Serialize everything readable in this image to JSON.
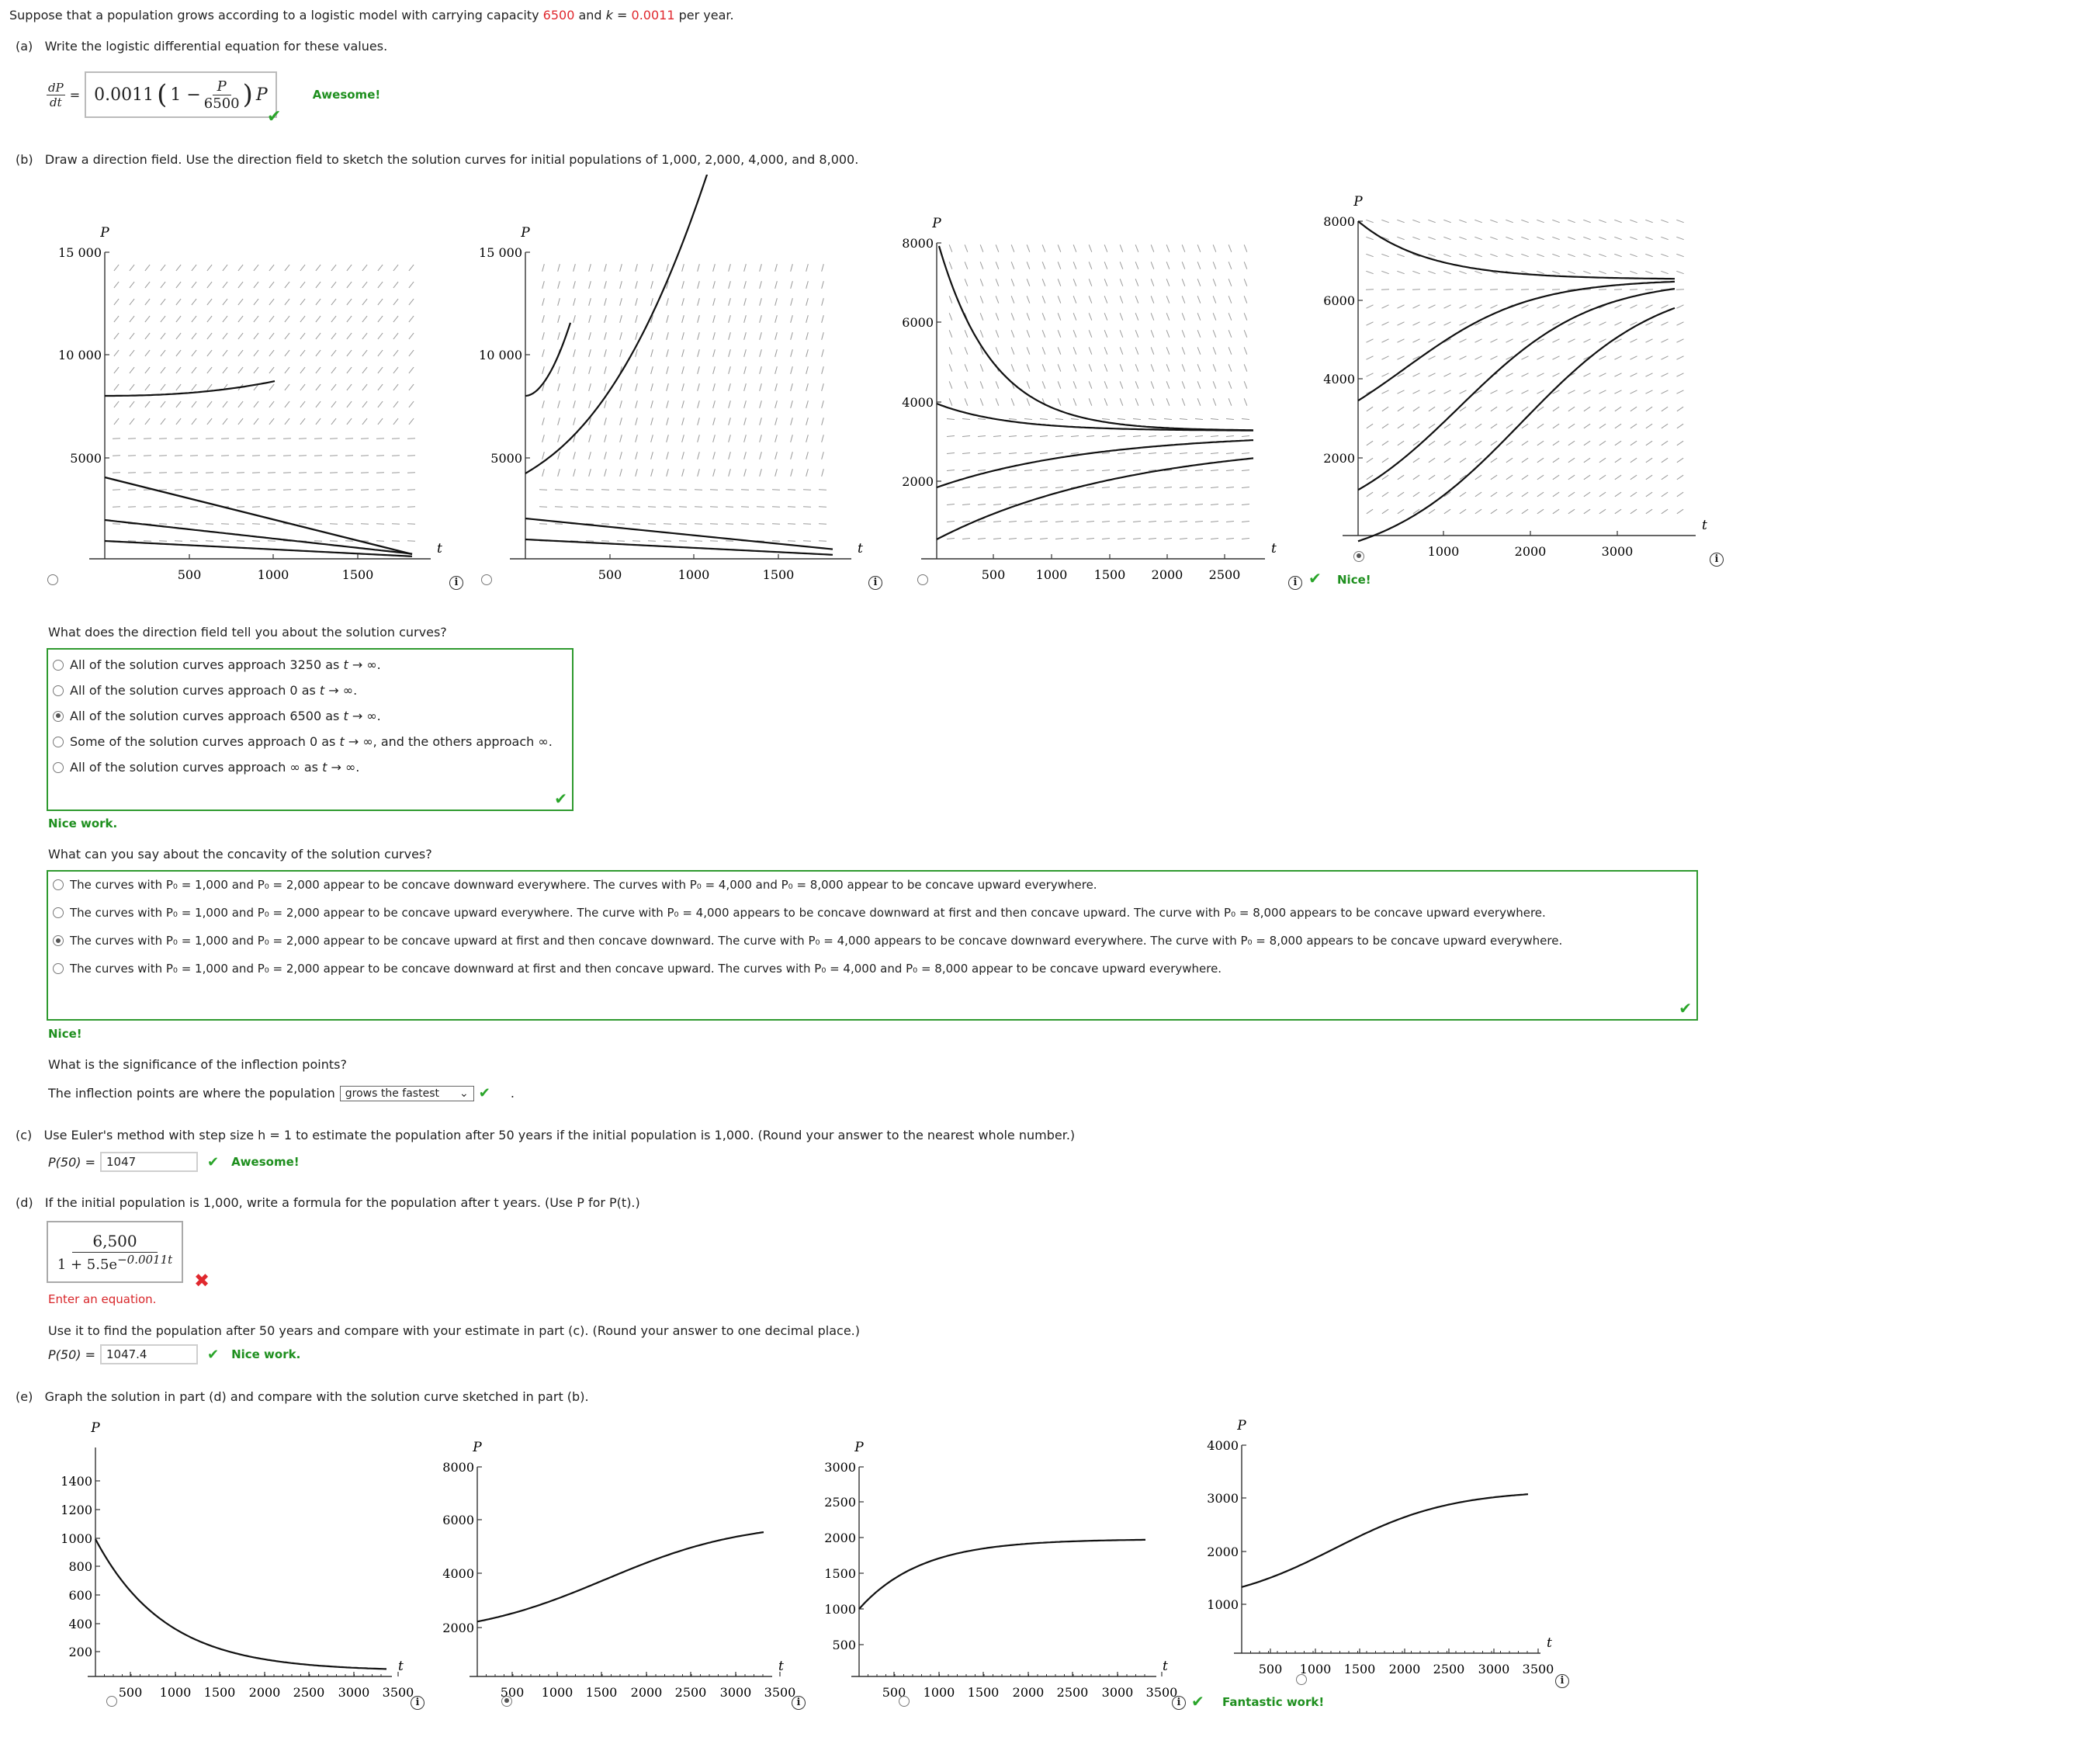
{
  "intro": {
    "text_a": "Suppose that a population grows according to a logistic model with carrying capacity ",
    "capacity": "6500",
    "text_b": " and ",
    "kvar": "k",
    "text_c": " = ",
    "kval": "0.0011",
    "text_d": " per year."
  },
  "part_a": {
    "label": "(a)",
    "prompt": "Write the logistic differential equation for these values.",
    "lhs_num": "dP",
    "lhs_den": "dt",
    "eq": "=",
    "ans_k": "0.0011",
    "ans_one": "1 −",
    "ans_pnum": "P",
    "ans_pden": "6500",
    "ans_tail": "P",
    "feedback": "Awesome!"
  },
  "part_b": {
    "label": "(b)",
    "prompt": "Draw a direction field. Use the direction field to sketch the solution curves for initial populations of 1,000, 2,000, 4,000, and 8,000.",
    "graphs": [
      {
        "ylabel": "P",
        "xlabel": "t",
        "yticks": [
          "15 000",
          "10 000",
          "5000"
        ],
        "xticks": [
          "500",
          "1000",
          "1500"
        ],
        "selected": false
      },
      {
        "ylabel": "P",
        "xlabel": "t",
        "yticks": [
          "15 000",
          "10 000",
          "5000"
        ],
        "xticks": [
          "500",
          "1000",
          "1500"
        ],
        "selected": false
      },
      {
        "ylabel": "P",
        "xlabel": "t",
        "yticks": [
          "8000",
          "6000",
          "4000",
          "2000"
        ],
        "xticks": [
          "500",
          "1000",
          "1500",
          "2000",
          "2500"
        ],
        "selected": false
      },
      {
        "ylabel": "P",
        "xlabel": "t",
        "yticks": [
          "8000",
          "6000",
          "4000",
          "2000"
        ],
        "xticks": [
          "1000",
          "2000",
          "3000"
        ],
        "selected": true
      }
    ],
    "graphs_feedback": "Nice!",
    "q1": "What does the direction field tell you about the solution curves?",
    "q1_options": [
      {
        "pre": "All of the solution curves approach 3250 as ",
        "t": "t",
        "post": " → ∞.",
        "selected": false
      },
      {
        "pre": "All of the solution curves approach 0 as ",
        "t": "t",
        "post": " → ∞.",
        "selected": false
      },
      {
        "pre": "All of the solution curves approach 6500 as ",
        "t": "t",
        "post": " → ∞.",
        "selected": true
      },
      {
        "pre": "Some of the solution curves approach 0 as ",
        "t": "t",
        "post": " → ∞, and the others approach ∞.",
        "selected": false
      },
      {
        "pre": "All of the solution curves approach ∞ as ",
        "t": "t",
        "post": " → ∞.",
        "selected": false
      }
    ],
    "q1_feedback": "Nice work.",
    "q2": "What can you say about the concavity of the solution curves?",
    "q2_options": [
      {
        "text": "The curves with P₀ = 1,000 and P₀ = 2,000 appear to be concave downward everywhere. The curves with P₀ = 4,000 and P₀ = 8,000 appear to be concave upward everywhere.",
        "selected": false
      },
      {
        "text": "The curves with P₀ = 1,000 and P₀ = 2,000 appear to be concave upward everywhere. The curve with P₀ = 4,000 appears to be concave downward at first and then concave upward. The curve with P₀ = 8,000 appears to be concave upward everywhere.",
        "selected": false
      },
      {
        "text": "The curves with P₀ = 1,000 and P₀ = 2,000 appear to be concave upward at first and then concave downward. The curve with P₀ = 4,000 appears to be concave downward everywhere. The curve with P₀ = 8,000 appears to be concave upward everywhere.",
        "selected": true
      },
      {
        "text": "The curves with P₀ = 1,000 and P₀ = 2,000 appear to be concave downward at first and then concave upward. The curves with P₀ = 4,000 and P₀ = 8,000 appear to be concave upward everywhere.",
        "selected": false
      }
    ],
    "q2_feedback": "Nice!",
    "q3": "What is the significance of the inflection points?",
    "q3_lead": "The inflection points are where the population",
    "q3_select": "grows the fastest",
    "q3_tail": "."
  },
  "part_c": {
    "label": "(c)",
    "prompt": "Use Euler's method with step size h = 1 to estimate the population after 50 years if the initial population is 1,000. (Round your answer to the nearest whole number.)",
    "input_label": "P(50) =",
    "input_value": "1047",
    "feedback": "Awesome!"
  },
  "part_d": {
    "label": "(d)",
    "prompt": "If the initial population is 1,000, write a formula for the population after t years. (Use P for P(t).)",
    "num": "6,500",
    "den": "1 + 5.5e",
    "exp": "−0.0011t",
    "error": "Enter an equation.",
    "prompt2": "Use it to find the population after 50 years and compare with your estimate in part (c). (Round your answer to one decimal place.)",
    "input_label": "P(50) =",
    "input_value": "1047.4",
    "feedback": "Nice work."
  },
  "part_e": {
    "label": "(e)",
    "prompt": "Graph the solution in part (d) and compare with the solution curve sketched in part (b).",
    "graphs": [
      {
        "ylabel": "P",
        "xlabel": "t",
        "yticks": [
          "1400",
          "1200",
          "1000",
          "800",
          "600",
          "400",
          "200"
        ],
        "xticks": [
          "500",
          "1000",
          "1500",
          "2000",
          "2500",
          "3000",
          "3500"
        ],
        "selected": false
      },
      {
        "ylabel": "P",
        "xlabel": "t",
        "yticks": [
          "8000",
          "6000",
          "4000",
          "2000"
        ],
        "xticks": [
          "500",
          "1000",
          "1500",
          "2000",
          "2500",
          "3000",
          "3500"
        ],
        "selected": true
      },
      {
        "ylabel": "P",
        "xlabel": "t",
        "yticks": [
          "3000",
          "2500",
          "2000",
          "1500",
          "1000",
          "500"
        ],
        "xticks": [
          "500",
          "1000",
          "1500",
          "2000",
          "2500",
          "3000",
          "3500"
        ],
        "selected": false
      },
      {
        "ylabel": "P",
        "xlabel": "t",
        "yticks": [
          "4000",
          "3000",
          "2000",
          "1000"
        ],
        "xticks": [
          "500",
          "1000",
          "1500",
          "2000",
          "2500",
          "3000",
          "3500"
        ],
        "selected": false
      }
    ],
    "feedback": "Fantastic work!"
  },
  "colors": {
    "accent_red": "#e0282e",
    "correct_green": "#1e8f1e",
    "box_border": "#2f9a2f"
  },
  "icons": {
    "info": "info-icon",
    "check": "checkmark-icon",
    "cross": "cross-icon"
  }
}
